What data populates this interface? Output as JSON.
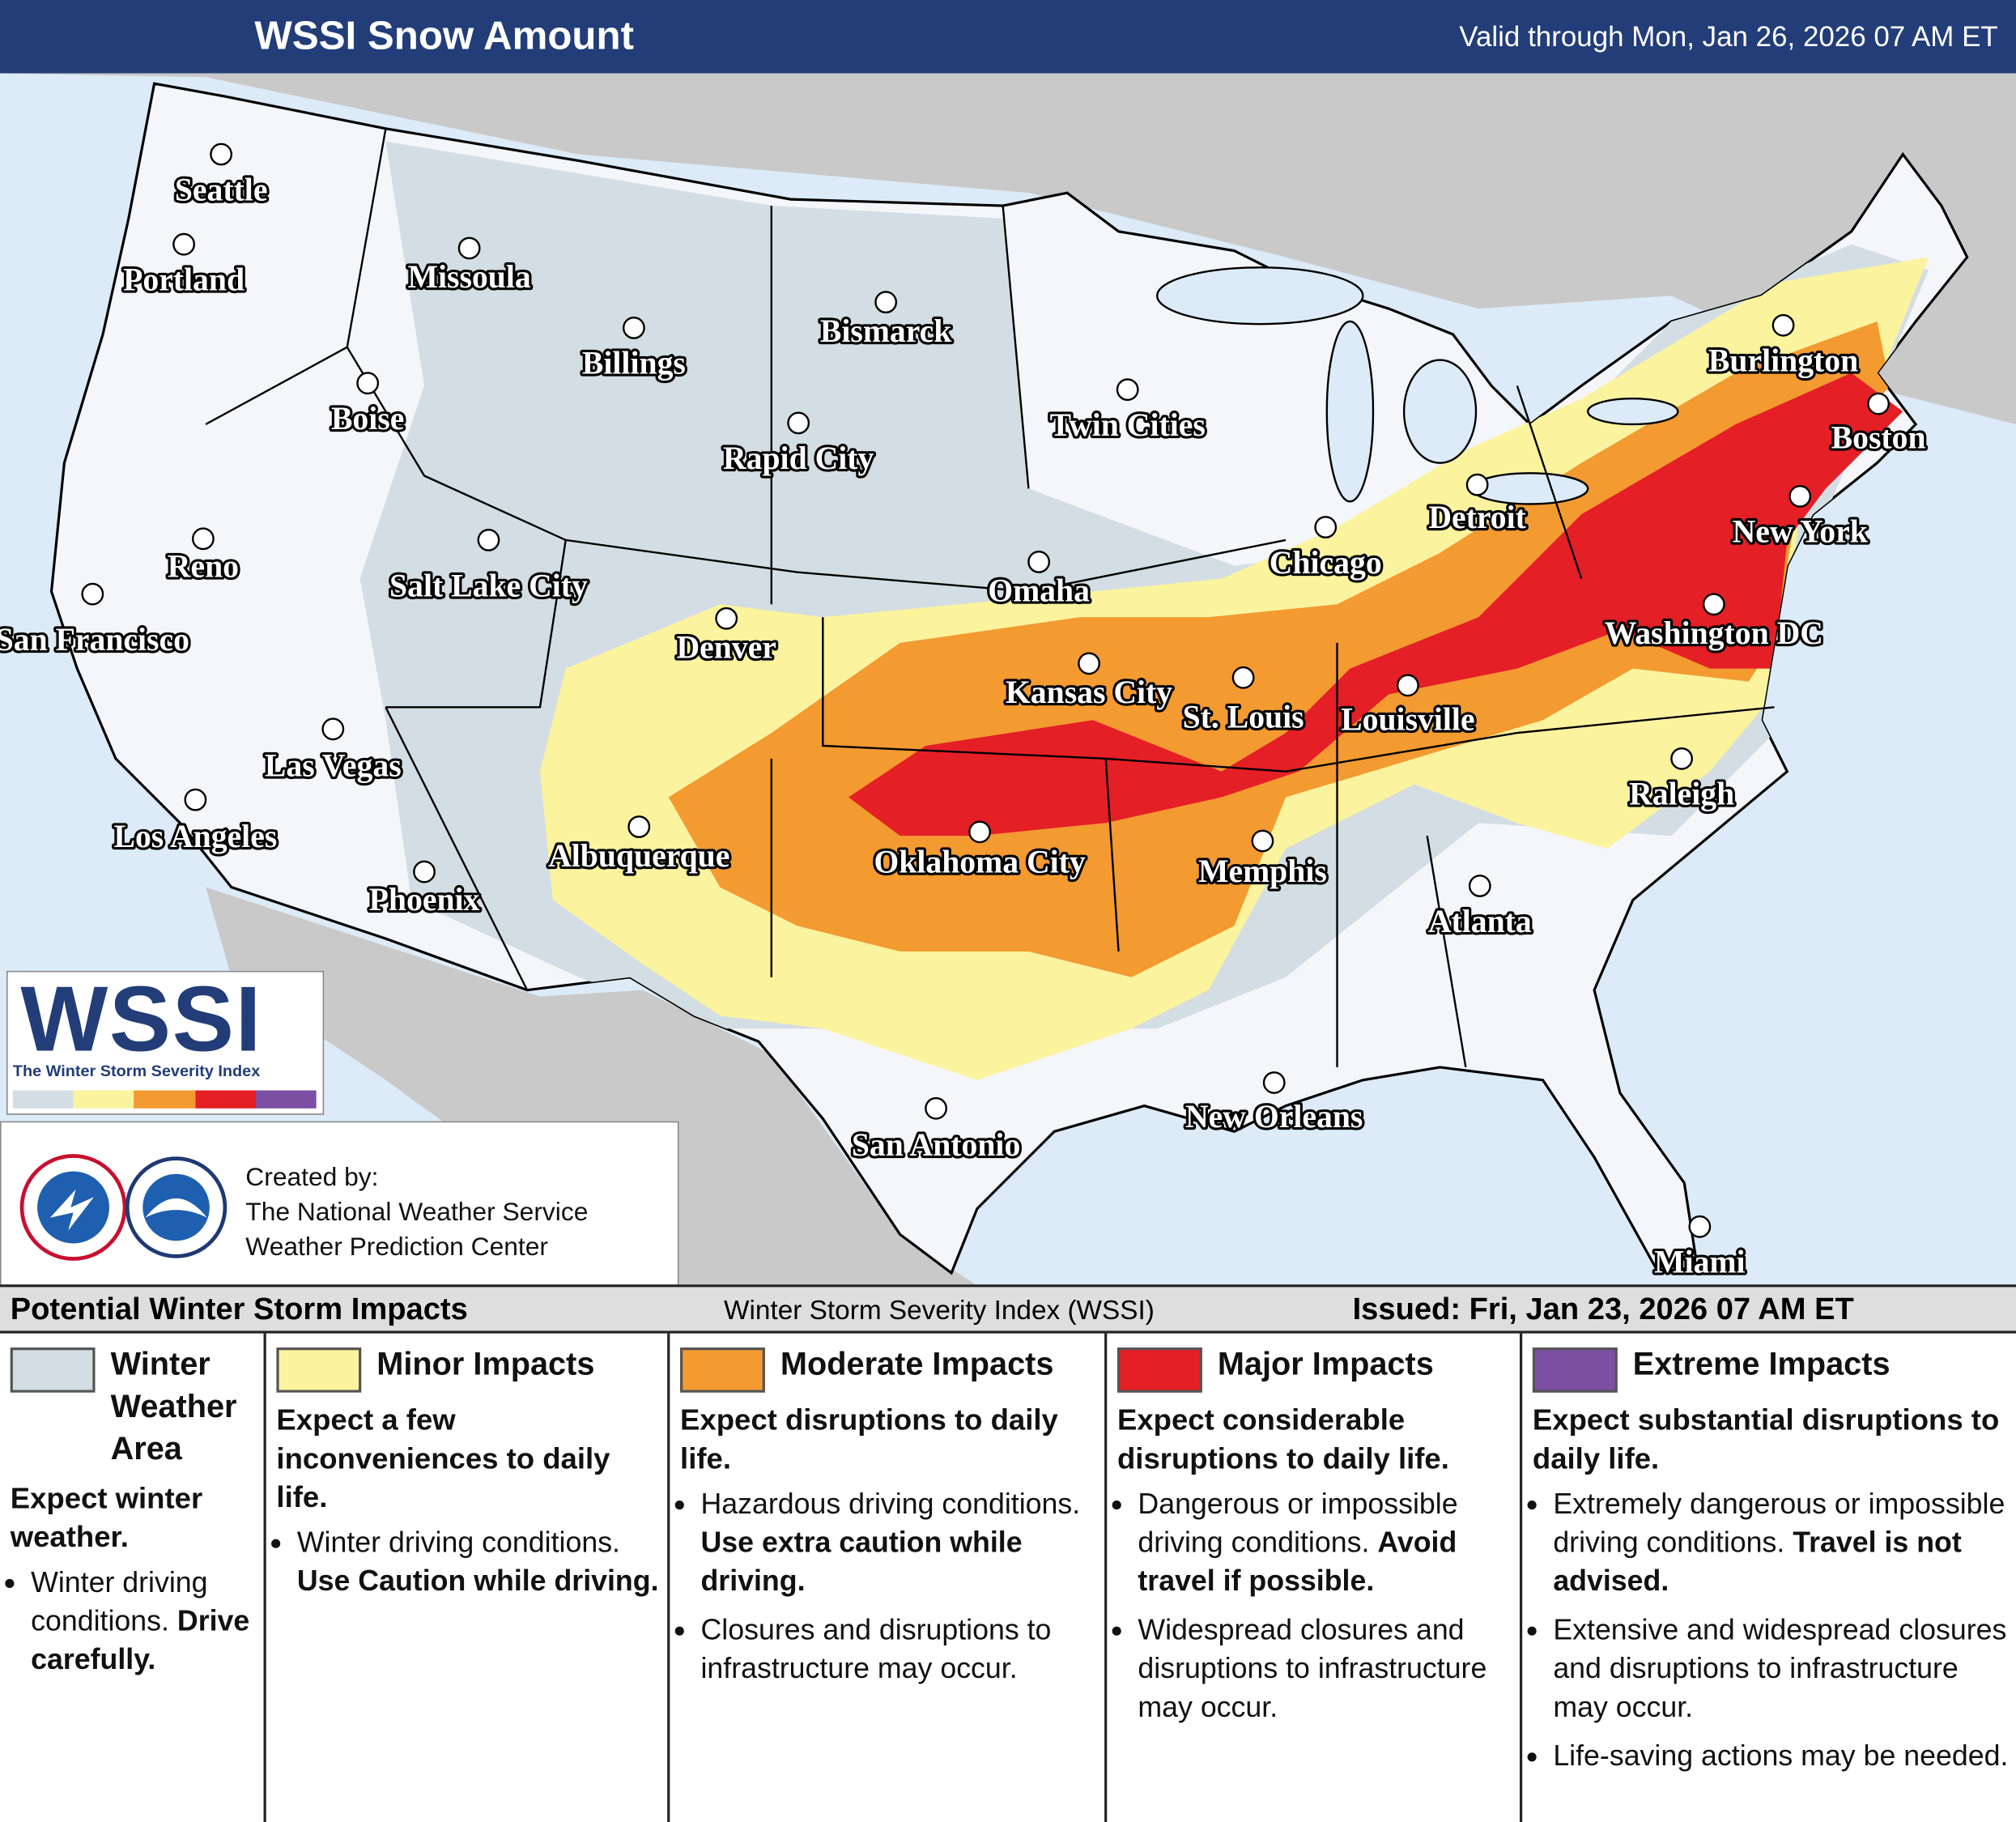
{
  "header": {
    "title": "WSSI Snow Amount",
    "valid": "Valid through Mon, Jan 26, 2026 07 AM ET"
  },
  "map": {
    "cities": [
      {
        "label": "Seattle"
      },
      {
        "label": "Portland"
      },
      {
        "label": "Missoula"
      },
      {
        "label": "Billings"
      },
      {
        "label": "Bismarck"
      },
      {
        "label": "Boise"
      },
      {
        "label": "Rapid City"
      },
      {
        "label": "Twin Cities"
      },
      {
        "label": "Burlington"
      },
      {
        "label": "Boston"
      },
      {
        "label": "Reno"
      },
      {
        "label": "Salt Lake City"
      },
      {
        "label": "Detroit"
      },
      {
        "label": "Chicago"
      },
      {
        "label": "New York"
      },
      {
        "label": "San Francisco"
      },
      {
        "label": "Omaha"
      },
      {
        "label": "Denver"
      },
      {
        "label": "Washington DC"
      },
      {
        "label": "Kansas City"
      },
      {
        "label": "St. Louis"
      },
      {
        "label": "Louisville"
      },
      {
        "label": "Las Vegas"
      },
      {
        "label": "Raleigh"
      },
      {
        "label": "Los Angeles"
      },
      {
        "label": "Albuquerque"
      },
      {
        "label": "Oklahoma City"
      },
      {
        "label": "Memphis"
      },
      {
        "label": "Phoenix"
      },
      {
        "label": "Atlanta"
      },
      {
        "label": "San Antonio"
      },
      {
        "label": "New Orleans"
      },
      {
        "label": "Miami"
      }
    ]
  },
  "logo": {
    "title": "WSSI",
    "subtitle": "The Winter Storm Severity Index"
  },
  "credits": {
    "lines": [
      "Created by:",
      "The National Weather Service",
      "Weather Prediction Center"
    ]
  },
  "legend": {
    "title": "Potential Winter Storm Impacts",
    "subtitle": "Winter Storm Severity Index (WSSI)",
    "issued": "Issued: Fri, Jan 23, 2026 07 AM ET",
    "categories": [
      {
        "name": "Winter Weather Area",
        "color": "#d3dde4",
        "summary": "Expect winter weather.",
        "bullets": [
          [
            {
              "text": "Winter driving conditions."
            },
            {
              "text": "Drive carefully.",
              "bold": true
            }
          ]
        ]
      },
      {
        "name": "Minor Impacts",
        "color": "#fbf39e",
        "summary": "Expect a few inconveniences to daily life.",
        "bullets": [
          [
            {
              "text": "Winter driving conditions."
            },
            {
              "text": "Use Caution while driving.",
              "bold": true
            }
          ]
        ]
      },
      {
        "name": "Moderate Impacts",
        "color": "#f39a31",
        "summary": "Expect disruptions to daily life.",
        "bullets": [
          [
            {
              "text": "Hazardous driving conditions."
            },
            {
              "text": "Use extra caution while driving.",
              "bold": true
            }
          ],
          [
            {
              "text": "Closures and disruptions to infrastructure may occur."
            }
          ]
        ]
      },
      {
        "name": "Major Impacts",
        "color": "#e41f26",
        "summary": "Expect considerable disruptions to daily life.",
        "bullets": [
          [
            {
              "text": "Dangerous or impossible driving conditions."
            },
            {
              "text": "Avoid travel if possible.",
              "bold": true
            }
          ],
          [
            {
              "text": "Widespread closures and disruptions to infrastructure may occur."
            }
          ]
        ]
      },
      {
        "name": "Extreme Impacts",
        "color": "#7d4fa3",
        "summary": "Expect substantial disruptions to daily life.",
        "bullets": [
          [
            {
              "text": "Extremely dangerous or impossible driving conditions."
            },
            {
              "text": "Travel is not advised.",
              "bold": true
            }
          ],
          [
            {
              "text": "Extensive and widespread closures and disruptions to infrastructure may occur."
            }
          ],
          [
            {
              "text": "Life-saving actions may be needed."
            }
          ]
        ]
      }
    ]
  }
}
